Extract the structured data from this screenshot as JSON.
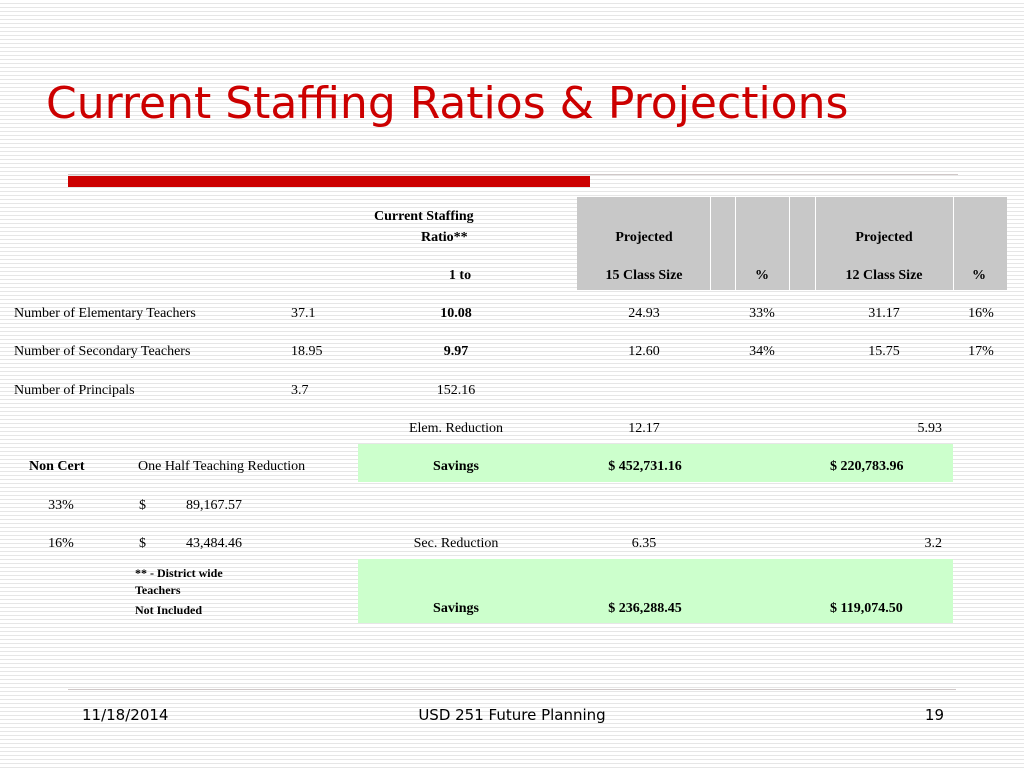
{
  "slide": {
    "title": "Current Staffing Ratios & Projections"
  },
  "table": {
    "header": {
      "current_line1": "Current Staffing",
      "current_line2": "Ratio**",
      "current_line3": "1 to",
      "projected1_line1": "Projected",
      "projected1_line2": "15 Class Size",
      "pct1": "%",
      "projected2_line1": "Projected",
      "projected2_line2": "12 Class Size",
      "pct2": "%"
    },
    "rows": [
      {
        "label": "Number of Elementary Teachers",
        "count": "37.1",
        "ratio": "10.08",
        "proj15": "24.93",
        "pct15": "33%",
        "proj12": "31.17",
        "pct12": "16%"
      },
      {
        "label": "Number of Secondary Teachers",
        "count": "18.95",
        "ratio": "9.97",
        "proj15": "12.60",
        "pct15": "34%",
        "proj12": "15.75",
        "pct12": "17%"
      },
      {
        "label": "Number of Principals",
        "count": "3.7",
        "ratio": "152.16"
      }
    ],
    "elem_reduction": {
      "label": "Elem. Reduction",
      "val15": "12.17",
      "val12": "5.93"
    },
    "non_cert": {
      "label": "Non Cert",
      "desc": "One Half Teaching Reduction",
      "savings_label": "Savings",
      "savings15": "$  452,731.16",
      "savings12": "$   220,783.96"
    },
    "pct_rows": [
      {
        "pct": "33%",
        "dollar": "$",
        "amount": "89,167.57"
      },
      {
        "pct": "16%",
        "dollar": "$",
        "amount": "43,484.46"
      }
    ],
    "sec_reduction": {
      "label": "Sec. Reduction",
      "val15": "6.35",
      "val12": "3.2"
    },
    "note": {
      "line1": "** - District wide",
      "line2": "Teachers",
      "line3": "Not Included"
    },
    "savings2": {
      "label": "Savings",
      "savings15": "$  236,288.45",
      "savings12": "$   119,074.50"
    }
  },
  "footer": {
    "date": "11/18/2014",
    "center": "USD 251 Future Planning",
    "page": "19"
  }
}
